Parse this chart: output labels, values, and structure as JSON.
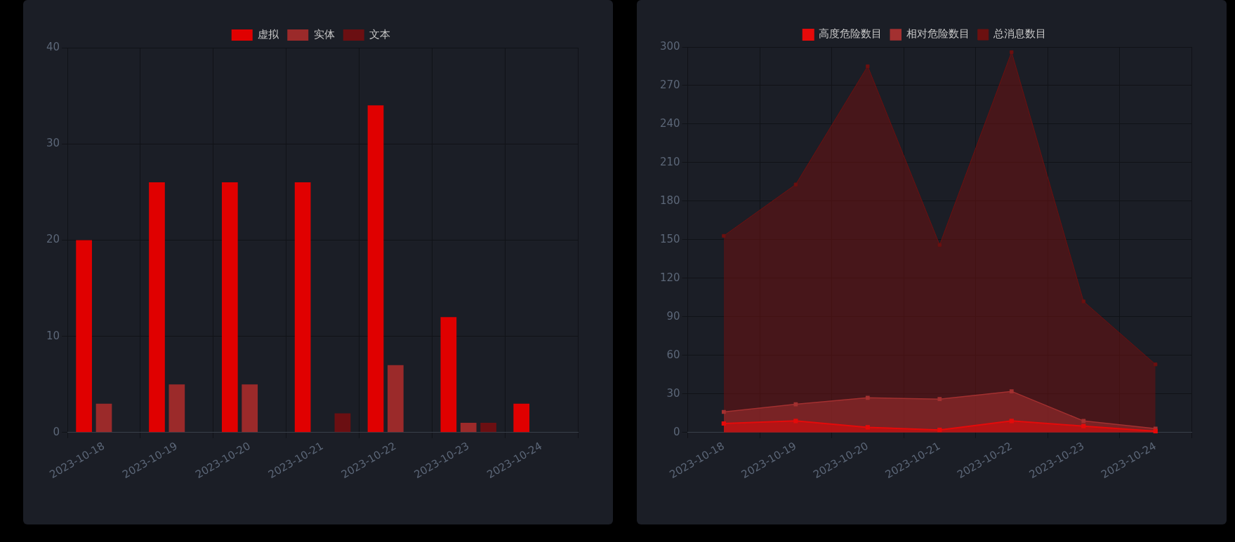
{
  "chart_data": [
    {
      "type": "bar",
      "categories": [
        "2023-10-18",
        "2023-10-19",
        "2023-10-20",
        "2023-10-21",
        "2023-10-22",
        "2023-10-23",
        "2023-10-24"
      ],
      "series": [
        {
          "name": "虚拟",
          "color": "#e00000",
          "values": [
            20,
            26,
            26,
            26,
            34,
            12,
            3
          ]
        },
        {
          "name": "实体",
          "color": "#9b2a2a",
          "values": [
            3,
            5,
            5,
            0,
            7,
            1,
            0
          ]
        },
        {
          "name": "文本",
          "color": "#6b0f12",
          "values": [
            0,
            0,
            0,
            2,
            0,
            1,
            0
          ]
        }
      ],
      "ylim": [
        0,
        40
      ],
      "yticks": [
        0,
        10,
        20,
        30,
        40
      ],
      "grid": true,
      "legend": "top"
    },
    {
      "type": "area",
      "categories": [
        "2023-10-18",
        "2023-10-19",
        "2023-10-20",
        "2023-10-21",
        "2023-10-22",
        "2023-10-23",
        "2023-10-24"
      ],
      "series": [
        {
          "name": "高度危险数目",
          "color": "#e50a0a",
          "values": [
            7,
            9,
            4,
            2,
            9,
            5,
            1
          ]
        },
        {
          "name": "相对危险数目",
          "color": "#a33030",
          "values": [
            16,
            22,
            27,
            26,
            32,
            9,
            3
          ]
        },
        {
          "name": "总消息数目",
          "color": "#6b1010",
          "values": [
            153,
            193,
            285,
            146,
            296,
            102,
            53
          ]
        }
      ],
      "ylim": [
        0,
        300
      ],
      "yticks": [
        0,
        30,
        60,
        90,
        120,
        150,
        180,
        210,
        240,
        270,
        300
      ],
      "grid": true,
      "legend": "top",
      "marker": "square"
    }
  ]
}
